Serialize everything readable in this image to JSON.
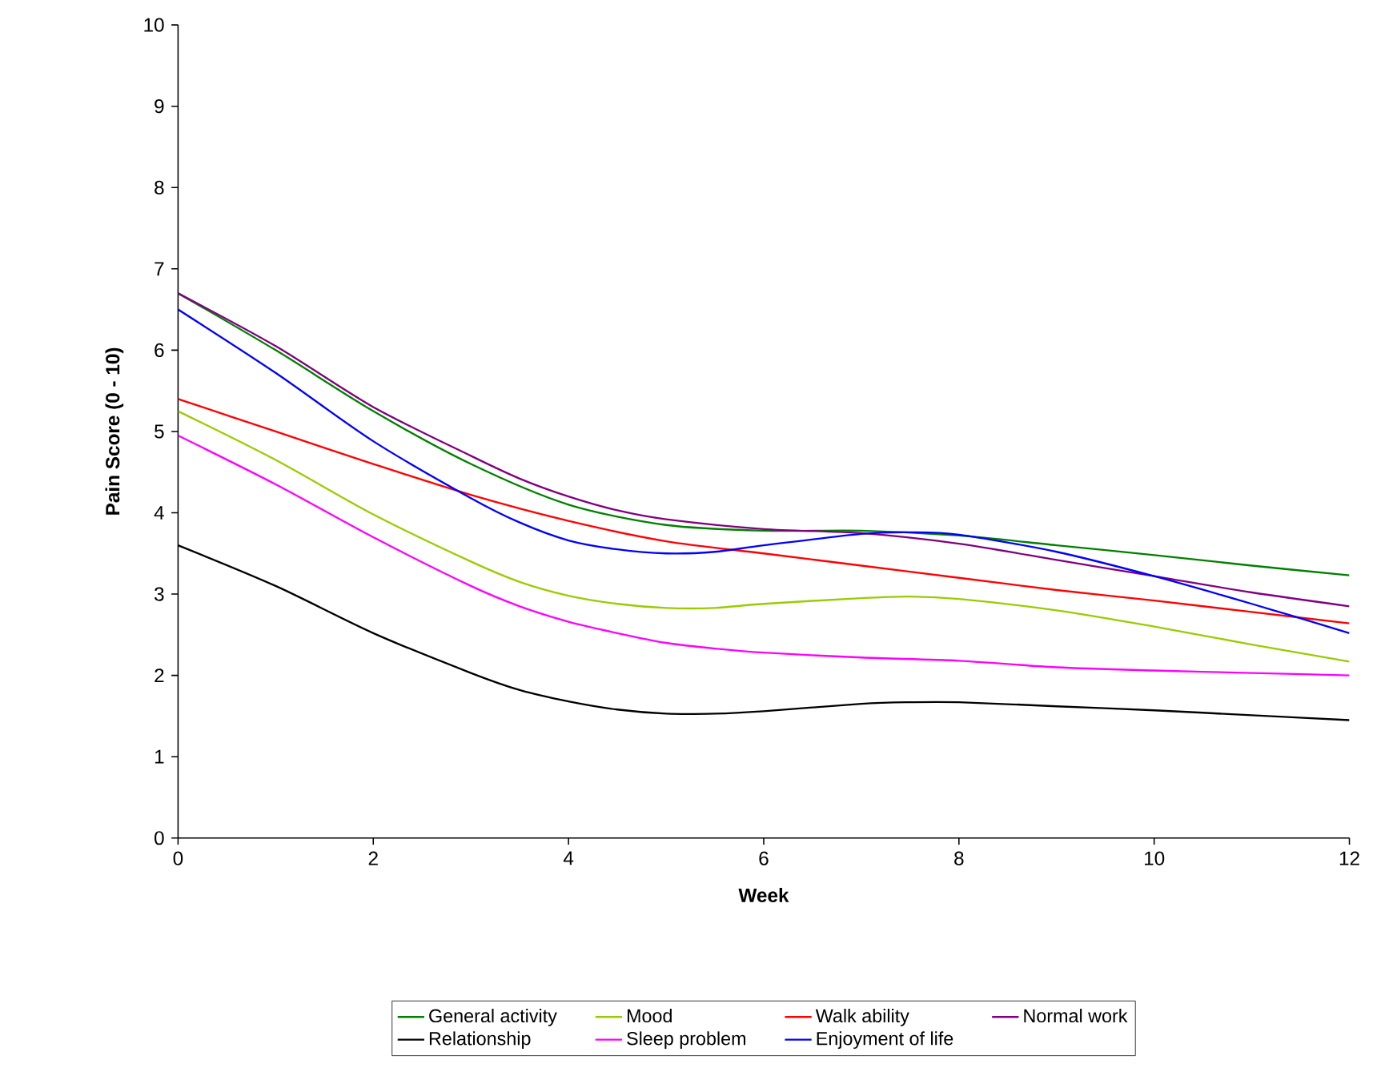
{
  "chart_data": {
    "type": "line",
    "xlabel": "Week",
    "ylabel": "Pain Score (0 - 10)",
    "xlim": [
      0,
      12
    ],
    "ylim": [
      0,
      10
    ],
    "xticks": [
      0,
      2,
      4,
      6,
      8,
      10,
      12
    ],
    "yticks": [
      0,
      1,
      2,
      3,
      4,
      5,
      6,
      7,
      8,
      9,
      10
    ],
    "grid": false,
    "legend": "bottom",
    "marker": "none",
    "line_style": "solid",
    "series": [
      {
        "name": "General activity",
        "color": "#008000",
        "x": [
          0,
          1,
          2,
          3,
          4,
          5,
          6,
          7,
          8,
          9,
          10,
          11,
          12
        ],
        "values": [
          6.7,
          6.0,
          5.25,
          4.6,
          4.1,
          3.85,
          3.78,
          3.78,
          3.72,
          3.6,
          3.48,
          3.35,
          3.23
        ]
      },
      {
        "name": "Mood",
        "color": "#99cc00",
        "x": [
          0,
          1,
          2,
          3,
          3.5,
          4,
          4.5,
          5,
          5.5,
          6,
          7,
          7.5,
          8,
          9,
          10,
          11,
          12
        ],
        "values": [
          5.25,
          4.65,
          3.98,
          3.4,
          3.15,
          2.98,
          2.88,
          2.83,
          2.83,
          2.88,
          2.95,
          2.97,
          2.94,
          2.8,
          2.6,
          2.38,
          2.17
        ]
      },
      {
        "name": "Walk ability",
        "color": "#ff0000",
        "x": [
          0,
          1,
          2,
          3,
          4,
          5,
          6,
          7,
          8,
          9,
          10,
          11,
          12
        ],
        "values": [
          5.4,
          5.0,
          4.6,
          4.22,
          3.9,
          3.65,
          3.5,
          3.35,
          3.2,
          3.05,
          2.92,
          2.78,
          2.64
        ]
      },
      {
        "name": "Normal work",
        "color": "#800080",
        "x": [
          0,
          1,
          2,
          3,
          3.5,
          4,
          4.5,
          5,
          6,
          7,
          8,
          9,
          10,
          11,
          12
        ],
        "values": [
          6.7,
          6.05,
          5.3,
          4.7,
          4.42,
          4.2,
          4.03,
          3.92,
          3.8,
          3.75,
          3.62,
          3.42,
          3.22,
          3.02,
          2.85
        ]
      },
      {
        "name": "Relationship",
        "color": "#000000",
        "x": [
          0,
          1,
          2,
          3,
          3.5,
          4,
          4.5,
          5,
          5.5,
          6,
          7,
          7.5,
          8,
          9,
          10,
          11,
          12
        ],
        "values": [
          3.6,
          3.1,
          2.52,
          2.03,
          1.82,
          1.68,
          1.58,
          1.53,
          1.53,
          1.56,
          1.65,
          1.67,
          1.67,
          1.62,
          1.57,
          1.51,
          1.45
        ]
      },
      {
        "name": "Sleep problem",
        "color": "#ff00ff",
        "x": [
          0,
          1,
          2,
          3,
          3.5,
          4,
          4.5,
          5,
          5.5,
          6,
          7,
          8,
          9,
          10,
          11,
          12
        ],
        "values": [
          4.95,
          4.35,
          3.7,
          3.1,
          2.85,
          2.66,
          2.52,
          2.4,
          2.33,
          2.28,
          2.22,
          2.18,
          2.1,
          2.06,
          2.03,
          2.0
        ]
      },
      {
        "name": "Enjoyment of life",
        "color": "#0000ff",
        "x": [
          0,
          1,
          2,
          3,
          3.5,
          4,
          4.5,
          5,
          5.5,
          6,
          7,
          7.5,
          8,
          9,
          10,
          11,
          12
        ],
        "values": [
          6.5,
          5.72,
          4.88,
          4.18,
          3.88,
          3.66,
          3.55,
          3.5,
          3.52,
          3.6,
          3.74,
          3.76,
          3.73,
          3.52,
          3.22,
          2.88,
          2.52
        ]
      }
    ]
  }
}
